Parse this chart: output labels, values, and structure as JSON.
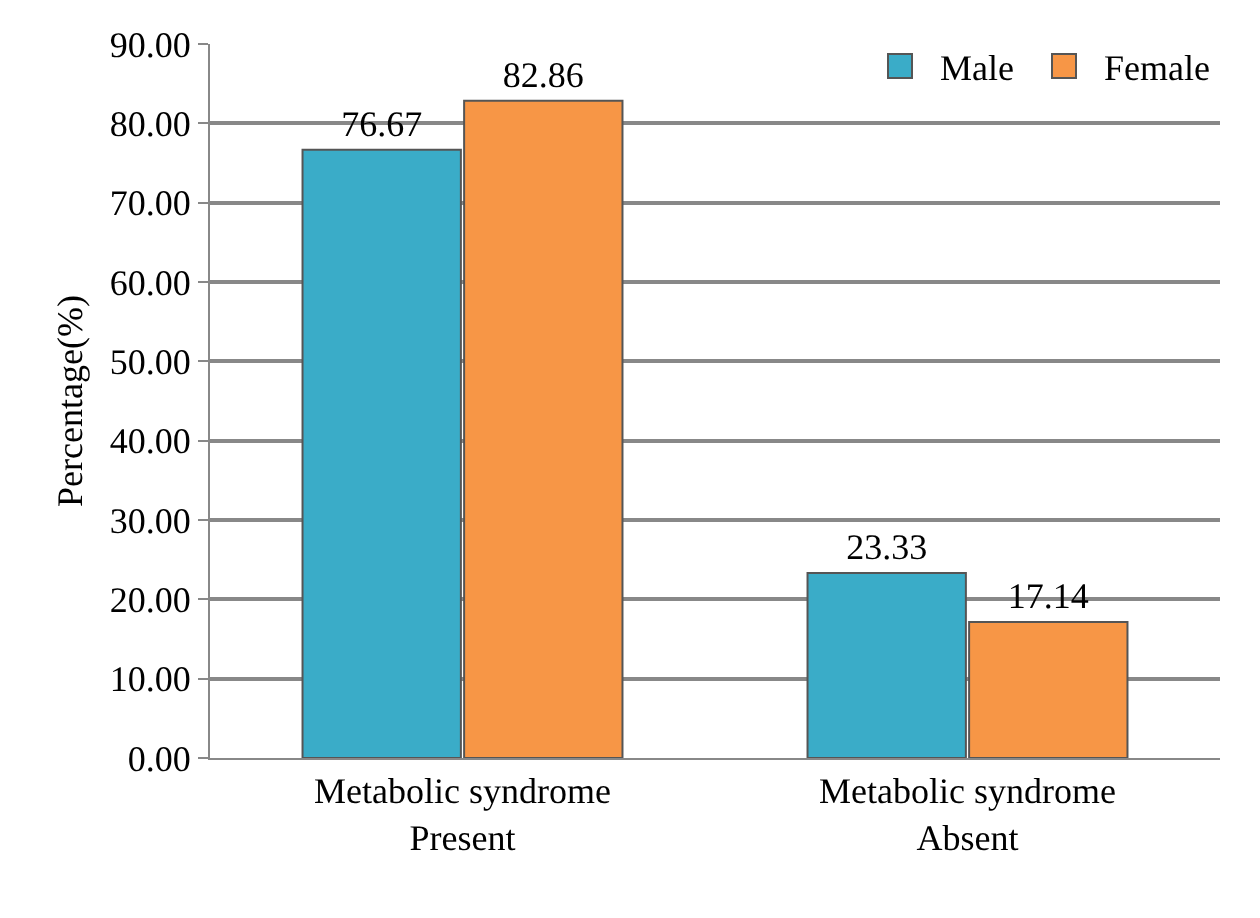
{
  "chart_data": {
    "type": "bar",
    "ylabel": "Percentage(%)",
    "categories": [
      "Metabolic syndrome\nPresent",
      "Metabolic syndrome\nAbsent"
    ],
    "series": [
      {
        "name": "Male",
        "color": "#3aacc8",
        "values": [
          76.67,
          23.33
        ]
      },
      {
        "name": "Female",
        "color": "#f79646",
        "values": [
          82.86,
          17.14
        ]
      }
    ],
    "ylim": [
      0,
      90
    ],
    "yticks": [
      {
        "value": 0,
        "label": "0.00"
      },
      {
        "value": 10,
        "label": "10.00"
      },
      {
        "value": 20,
        "label": "20.00"
      },
      {
        "value": 30,
        "label": "30.00"
      },
      {
        "value": 40,
        "label": "40.00"
      },
      {
        "value": 50,
        "label": "50.00"
      },
      {
        "value": 60,
        "label": "60.00"
      },
      {
        "value": 70,
        "label": "70.00"
      },
      {
        "value": 80,
        "label": "80.00"
      },
      {
        "value": 90,
        "label": "90.00"
      }
    ],
    "grid": "y",
    "legend": "top right",
    "data_labels": true
  }
}
